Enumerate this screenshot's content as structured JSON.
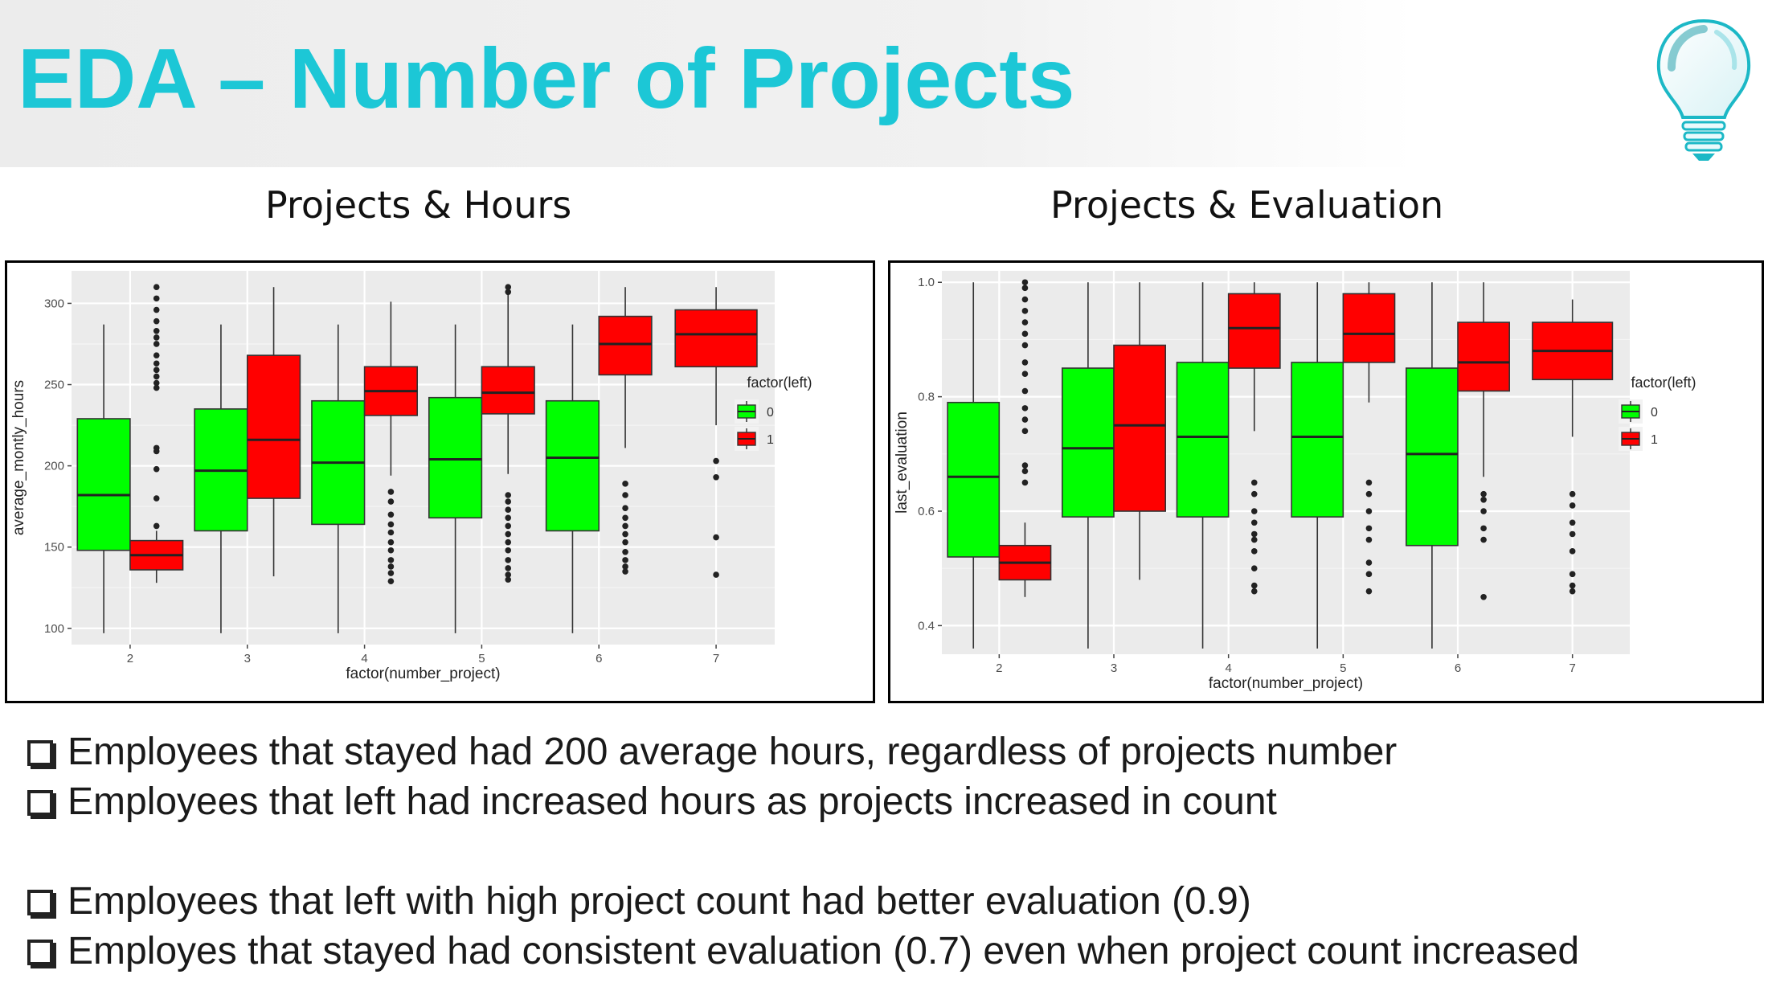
{
  "slide": {
    "title": "EDA – Number of Projects",
    "title_color": "#1cc7d6",
    "logo_icon": "lightbulb-icon"
  },
  "charts": {
    "left_subtitle": "Projects & Hours",
    "right_subtitle": "Projects & Evaluation"
  },
  "bullets": [
    "Employees that stayed had 200 average hours, regardless of projects number",
    "Employees that left had increased hours as projects increased in count",
    "Employees that left with high project count had better evaluation (0.9)",
    "Employes that stayed had consistent evaluation (0.7) even when project count increased"
  ],
  "chart_data": [
    {
      "type": "boxplot",
      "title": "",
      "xlabel": "factor(number_project)",
      "ylabel": "average_montly_hours",
      "categories": [
        "2",
        "3",
        "4",
        "5",
        "6",
        "7"
      ],
      "ylim": [
        90,
        320
      ],
      "yticks": [
        100,
        150,
        200,
        250,
        300
      ],
      "grid": true,
      "legend": {
        "title": "factor(left)",
        "position": "right",
        "entries": [
          "0",
          "1"
        ]
      },
      "colors": {
        "0": "#00ff00",
        "1": "#ff0000"
      },
      "series": [
        {
          "name": "0",
          "boxes": [
            {
              "category": "2",
              "min": 97,
              "q1": 148,
              "median": 182,
              "q3": 229,
              "max": 287,
              "outliers": []
            },
            {
              "category": "3",
              "min": 97,
              "q1": 160,
              "median": 197,
              "q3": 235,
              "max": 287,
              "outliers": []
            },
            {
              "category": "4",
              "min": 97,
              "q1": 164,
              "median": 202,
              "q3": 240,
              "max": 287,
              "outliers": []
            },
            {
              "category": "5",
              "min": 97,
              "q1": 168,
              "median": 204,
              "q3": 242,
              "max": 287,
              "outliers": []
            },
            {
              "category": "6",
              "min": 97,
              "q1": 160,
              "median": 205,
              "q3": 240,
              "max": 287,
              "outliers": []
            }
          ]
        },
        {
          "name": "1",
          "boxes": [
            {
              "category": "2",
              "min": 128,
              "q1": 136,
              "median": 145,
              "q3": 154,
              "max": 160,
              "outliers": [
                310,
                303,
                296,
                289,
                283,
                279,
                275,
                268,
                263,
                259,
                255,
                251,
                248,
                211,
                209,
                198,
                180,
                163
              ]
            },
            {
              "category": "3",
              "min": 132,
              "q1": 180,
              "median": 216,
              "q3": 268,
              "max": 310,
              "outliers": []
            },
            {
              "category": "4",
              "min": 194,
              "q1": 231,
              "median": 246,
              "q3": 261,
              "max": 301,
              "outliers": [
                184,
                178,
                170,
                164,
                159,
                153,
                148,
                142,
                138,
                134,
                129
              ]
            },
            {
              "category": "5",
              "min": 195,
              "q1": 232,
              "median": 245,
              "q3": 261,
              "max": 307,
              "outliers": [
                310,
                307,
                182,
                178,
                173,
                168,
                163,
                158,
                153,
                148,
                142,
                137,
                133,
                130
              ]
            },
            {
              "category": "6",
              "min": 211,
              "q1": 256,
              "median": 275,
              "q3": 292,
              "max": 310,
              "outliers": [
                189,
                182,
                174,
                168,
                163,
                158,
                153,
                147,
                142,
                138,
                135
              ]
            },
            {
              "category": "7",
              "min": 225,
              "q1": 261,
              "median": 281,
              "q3": 296,
              "max": 310,
              "outliers": [
                203,
                193,
                156,
                133
              ]
            }
          ]
        }
      ]
    },
    {
      "type": "boxplot",
      "title": "",
      "xlabel": "factor(number_project)",
      "ylabel": "last_evaluation",
      "categories": [
        "2",
        "3",
        "4",
        "5",
        "6",
        "7"
      ],
      "ylim": [
        0.35,
        1.02
      ],
      "yticks": [
        0.4,
        0.6,
        0.8,
        1.0
      ],
      "grid": true,
      "legend": {
        "title": "factor(left)",
        "position": "right",
        "entries": [
          "0",
          "1"
        ]
      },
      "colors": {
        "0": "#00ff00",
        "1": "#ff0000"
      },
      "series": [
        {
          "name": "0",
          "boxes": [
            {
              "category": "2",
              "min": 0.36,
              "q1": 0.52,
              "median": 0.66,
              "q3": 0.79,
              "max": 1.0,
              "outliers": []
            },
            {
              "category": "3",
              "min": 0.36,
              "q1": 0.59,
              "median": 0.71,
              "q3": 0.85,
              "max": 1.0,
              "outliers": []
            },
            {
              "category": "4",
              "min": 0.36,
              "q1": 0.59,
              "median": 0.73,
              "q3": 0.86,
              "max": 1.0,
              "outliers": []
            },
            {
              "category": "5",
              "min": 0.36,
              "q1": 0.59,
              "median": 0.73,
              "q3": 0.86,
              "max": 1.0,
              "outliers": []
            },
            {
              "category": "6",
              "min": 0.36,
              "q1": 0.54,
              "median": 0.7,
              "q3": 0.85,
              "max": 1.0,
              "outliers": []
            }
          ]
        },
        {
          "name": "1",
          "boxes": [
            {
              "category": "2",
              "min": 0.45,
              "q1": 0.48,
              "median": 0.51,
              "q3": 0.54,
              "max": 0.58,
              "outliers": [
                1.0,
                0.99,
                0.97,
                0.95,
                0.93,
                0.91,
                0.89,
                0.86,
                0.84,
                0.81,
                0.78,
                0.76,
                0.74,
                0.68,
                0.67,
                0.65
              ]
            },
            {
              "category": "3",
              "min": 0.48,
              "q1": 0.6,
              "median": 0.75,
              "q3": 0.89,
              "max": 1.0,
              "outliers": []
            },
            {
              "category": "4",
              "min": 0.74,
              "q1": 0.85,
              "median": 0.92,
              "q3": 0.98,
              "max": 1.0,
              "outliers": [
                0.65,
                0.63,
                0.6,
                0.58,
                0.56,
                0.55,
                0.53,
                0.5,
                0.47,
                0.46
              ]
            },
            {
              "category": "5",
              "min": 0.79,
              "q1": 0.86,
              "median": 0.91,
              "q3": 0.98,
              "max": 1.0,
              "outliers": [
                0.65,
                0.63,
                0.6,
                0.57,
                0.55,
                0.51,
                0.49,
                0.46
              ]
            },
            {
              "category": "6",
              "min": 0.66,
              "q1": 0.81,
              "median": 0.86,
              "q3": 0.93,
              "max": 1.0,
              "outliers": [
                0.63,
                0.62,
                0.6,
                0.57,
                0.55,
                0.45
              ]
            },
            {
              "category": "7",
              "min": 0.73,
              "q1": 0.83,
              "median": 0.88,
              "q3": 0.93,
              "max": 0.97,
              "outliers": [
                0.63,
                0.61,
                0.58,
                0.56,
                0.53,
                0.49,
                0.47,
                0.46
              ]
            }
          ]
        }
      ]
    }
  ]
}
